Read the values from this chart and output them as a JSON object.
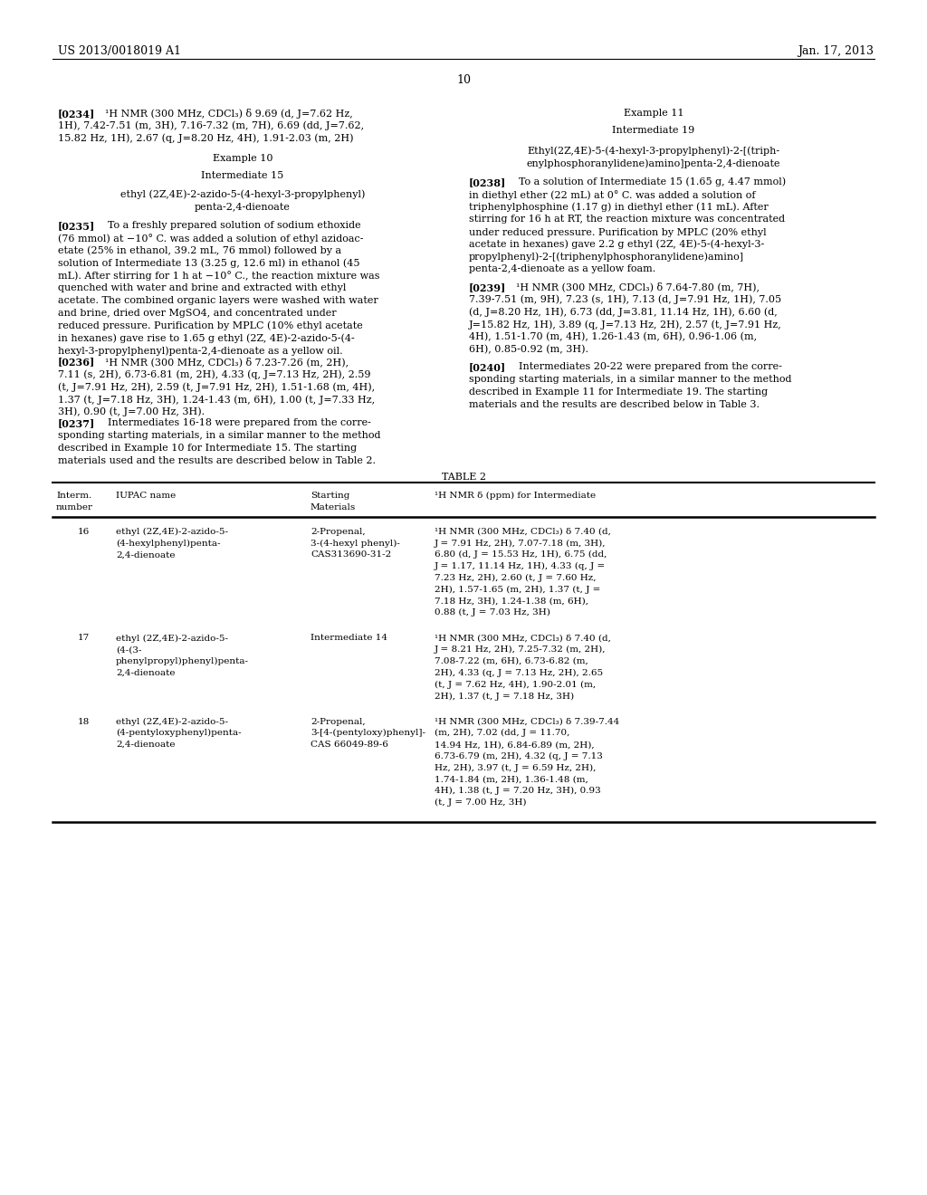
{
  "page_width": 10.24,
  "page_height": 13.2,
  "background_color": "#ffffff",
  "header_left": "US 2013/0018019 A1",
  "header_right": "Jan. 17, 2013",
  "page_number": "10"
}
